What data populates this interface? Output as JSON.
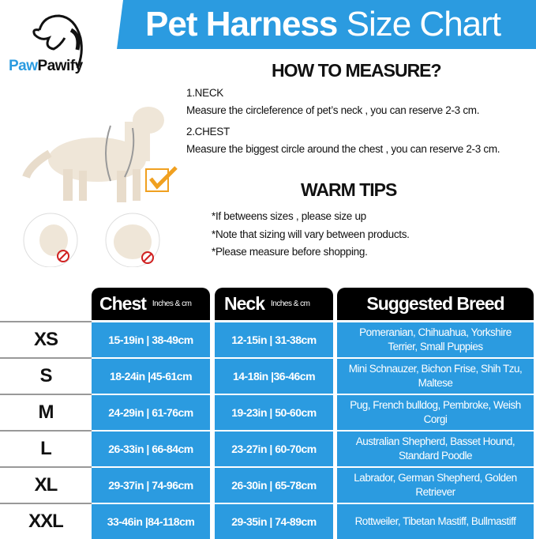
{
  "title": {
    "bold": "Pet Harness",
    "light": "Size Chart"
  },
  "brand": {
    "part1": "Paw",
    "part2": "Pawify"
  },
  "colors": {
    "accent": "#2b9be0",
    "header": "#000000",
    "check": "#f0a020",
    "no": "#d02020"
  },
  "measure": {
    "heading": "HOW TO MEASURE?",
    "neck_label": "1.NECK",
    "neck_text": "Measure the circleference of pet’s neck , you can reserve 2-3 cm.",
    "chest_label": "2.CHEST",
    "chest_text": "Measure the biggest circle around the chest , you can reserve 2-3 cm."
  },
  "tips": {
    "heading": "WARM TIPS",
    "items": [
      "*If betweens sizes , please size up",
      "*Note that sizing will vary between products.",
      "*Please measure before shopping."
    ]
  },
  "table": {
    "headers": [
      {
        "label": "Chest",
        "unit": "Inches & cm"
      },
      {
        "label": "Neck",
        "unit": "Inches & cm"
      },
      {
        "label": "Suggested Breed"
      }
    ],
    "rows": [
      {
        "size": "XS",
        "chest": "15-19in | 38-49cm",
        "neck": "12-15in | 31-38cm",
        "breed": "Pomeranian, Chihuahua, Yorkshire Terrier, Small Puppies"
      },
      {
        "size": "S",
        "chest": "18-24in |45-61cm",
        "neck": "14-18in |36-46cm",
        "breed": "Mini Schnauzer, Bichon Frise, Shih Tzu, Maltese"
      },
      {
        "size": "M",
        "chest": "24-29in | 61-76cm",
        "neck": "19-23in | 50-60cm",
        "breed": "Pug, French bulldog, Pembroke, Weish Corgi"
      },
      {
        "size": "L",
        "chest": "26-33in | 66-84cm",
        "neck": "23-27in | 60-70cm",
        "breed": "Australian Shepherd, Basset Hound, Standard Poodle"
      },
      {
        "size": "XL",
        "chest": "29-37in | 74-96cm",
        "neck": "26-30in | 65-78cm",
        "breed": "Labrador, German Shepherd, Golden Retriever"
      },
      {
        "size": "XXL",
        "chest": "33-46in |84-118cm",
        "neck": "29-35in | 74-89cm",
        "breed": "Rottweiler, Tibetan Mastiff, Bullmastiff"
      }
    ]
  }
}
